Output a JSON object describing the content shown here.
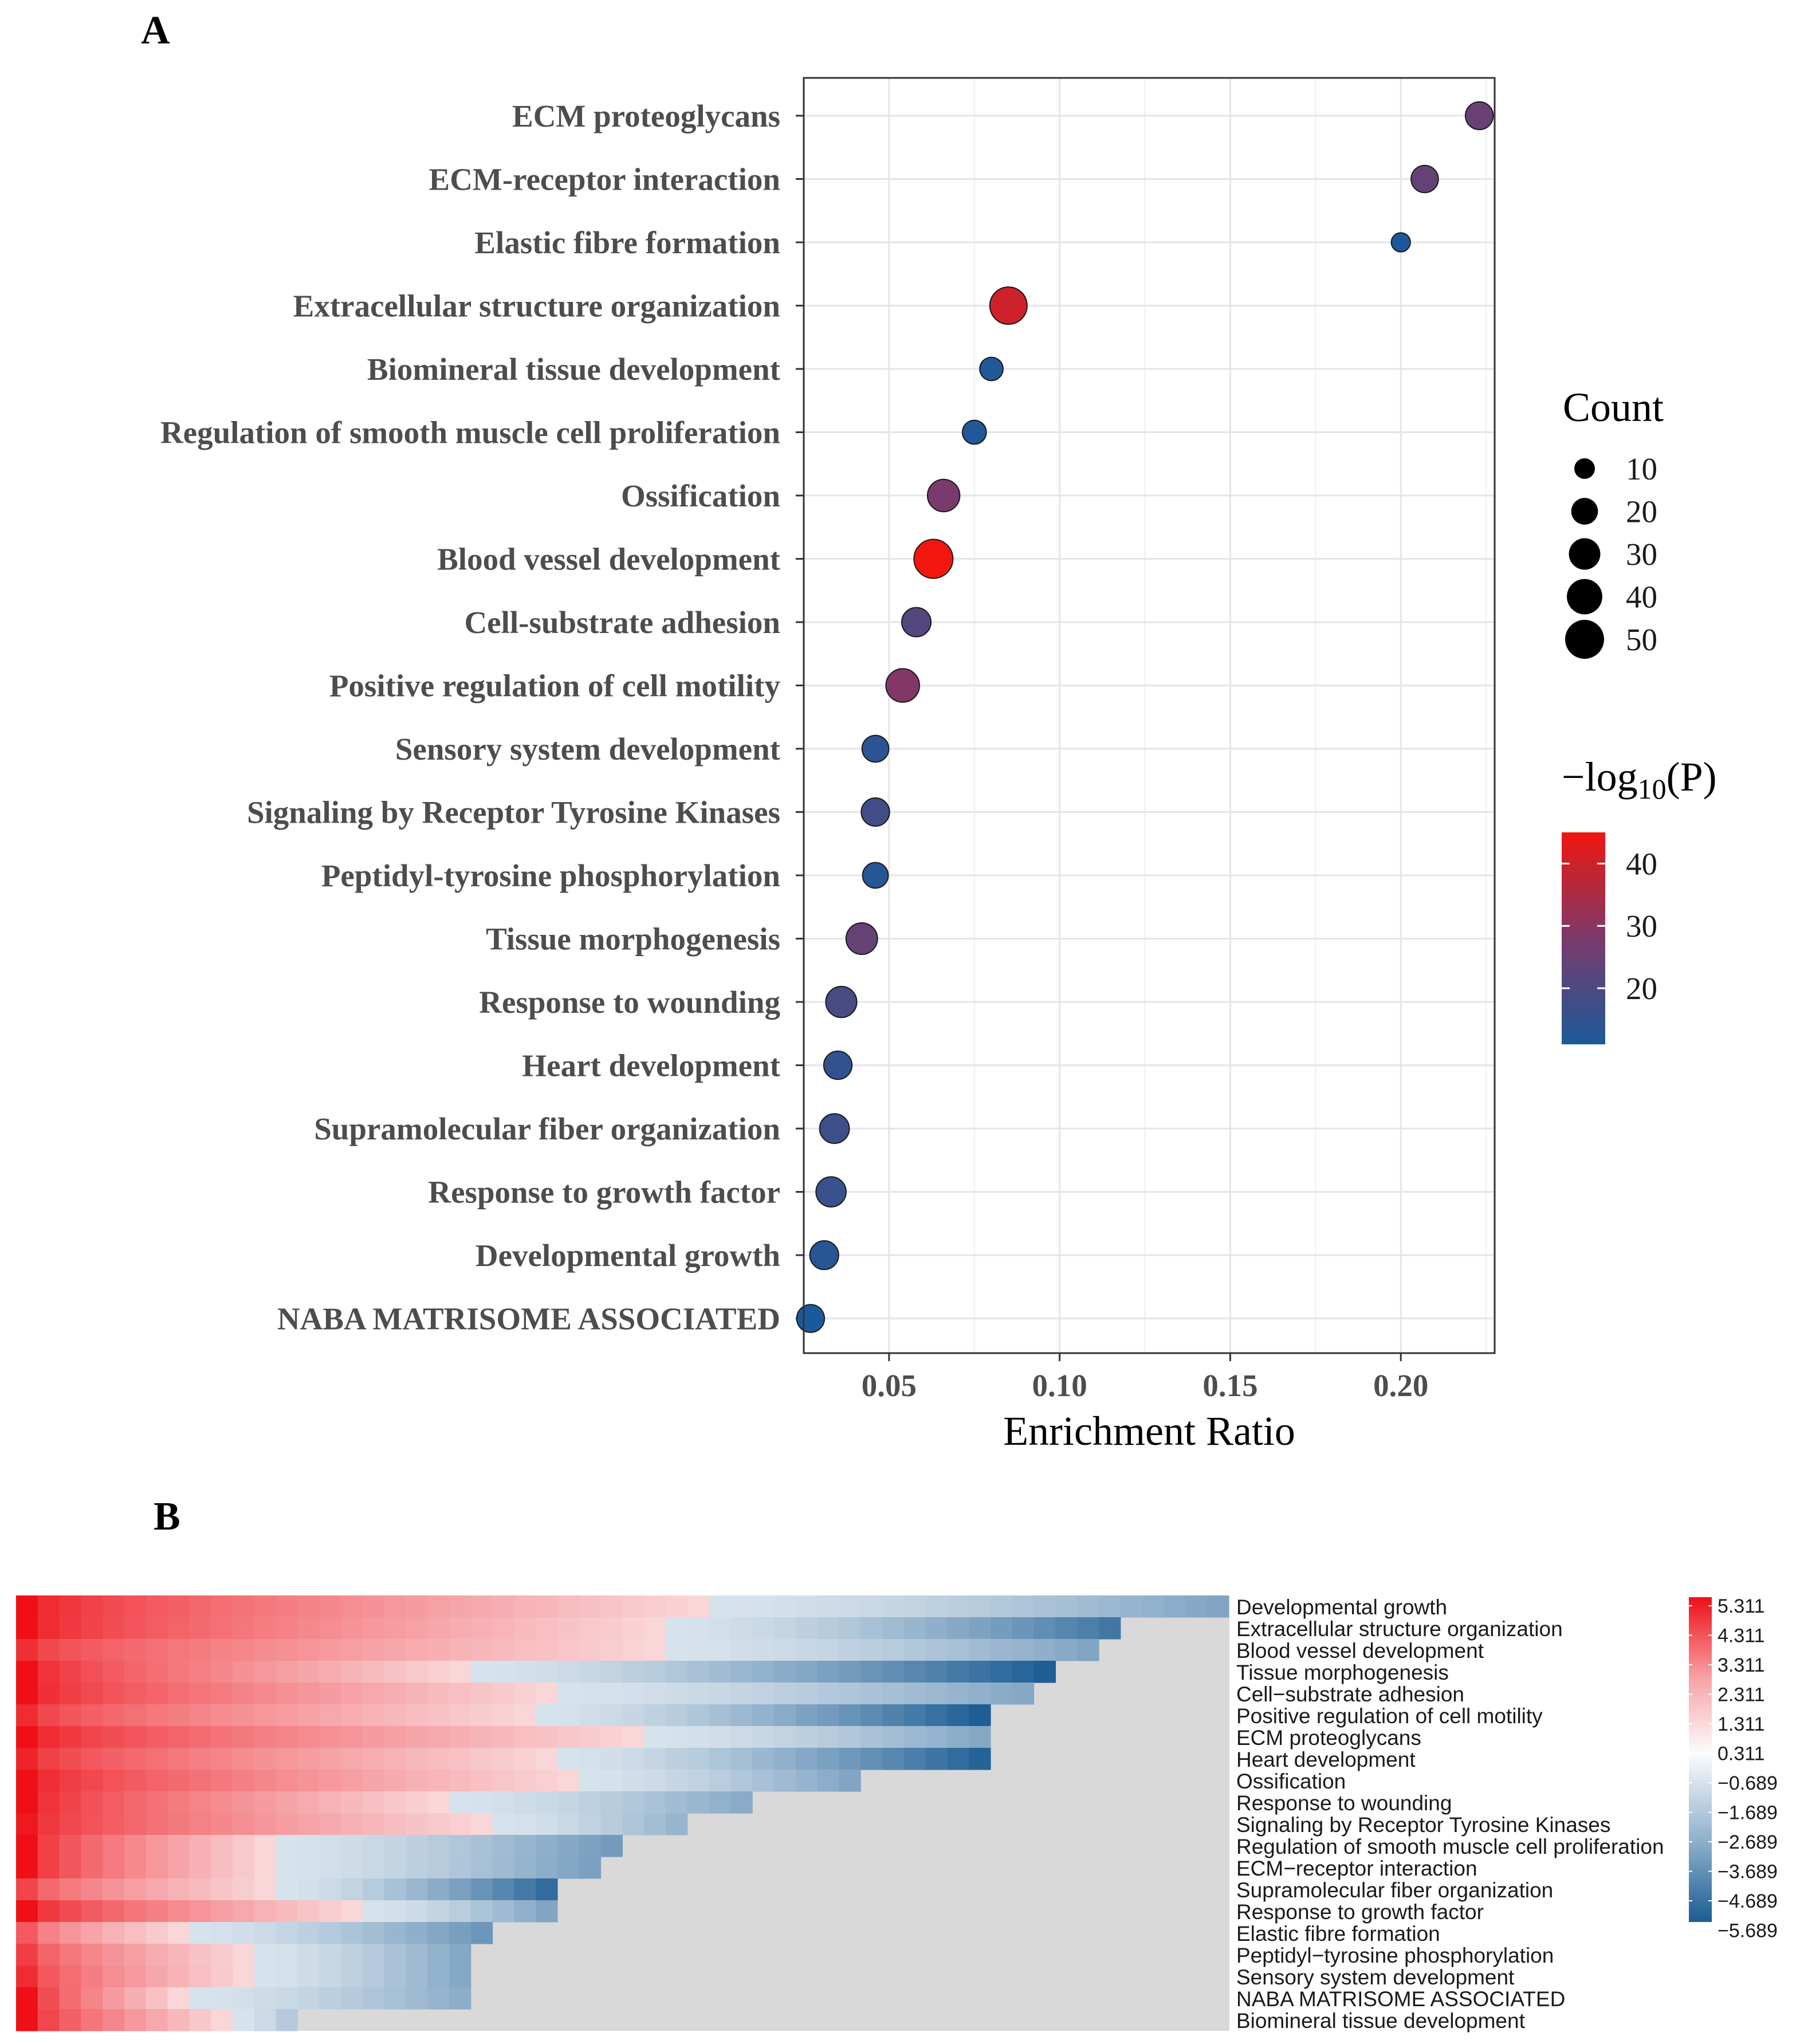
{
  "panels": {
    "a_label": "A",
    "b_label": "B"
  },
  "chart_data": [
    {
      "type": "scatter",
      "panel": "A",
      "xlabel": "Enrichment Ratio",
      "xlim": [
        0.025,
        0.2275
      ],
      "xticks": [
        0.05,
        0.1,
        0.15,
        0.2
      ],
      "xtick_labels": [
        "0.05",
        "0.10",
        "0.15",
        "0.20"
      ],
      "terms": [
        "ECM proteoglycans",
        "ECM-receptor interaction",
        "Elastic fibre formation",
        "Extracellular structure organization",
        "Biomineral tissue development",
        "Regulation of smooth muscle cell proliferation",
        "Ossification",
        "Blood vessel development",
        "Cell-substrate adhesion",
        "Positive regulation of cell motility",
        "Sensory system development",
        "Signaling by Receptor Tyrosine Kinases",
        "Peptidyl-tyrosine phosphorylation",
        "Tissue morphogenesis",
        "Response to wounding",
        "Heart development",
        "Supramolecular fiber organization",
        "Response to growth factor",
        "Developmental growth",
        "NABA MATRISOME ASSOCIATED"
      ],
      "enrichment_ratio": [
        0.223,
        0.207,
        0.2,
        0.085,
        0.08,
        0.075,
        0.066,
        0.063,
        0.058,
        0.054,
        0.046,
        0.046,
        0.046,
        0.042,
        0.036,
        0.035,
        0.034,
        0.033,
        0.031,
        0.027
      ],
      "count": [
        22,
        21,
        8,
        45,
        14,
        15,
        32,
        50,
        25,
        35,
        20,
        23,
        18,
        30,
        29,
        23,
        26,
        27,
        24,
        22
      ],
      "neglog10p": [
        25,
        24,
        10,
        40,
        12,
        12,
        28,
        45,
        21,
        29,
        14,
        18,
        13,
        24,
        19,
        15,
        17,
        16,
        13,
        10
      ],
      "legend_size": {
        "title": "Count",
        "values": [
          10,
          20,
          30,
          40,
          50
        ],
        "labels": [
          "10",
          "20",
          "30",
          "40",
          "50"
        ]
      },
      "legend_color": {
        "title_prefix": "−log",
        "title_sub": "10",
        "title_suffix": "(P)",
        "ticks": [
          20,
          30,
          40
        ],
        "tick_labels": [
          "20",
          "30",
          "40"
        ],
        "range": [
          11,
          45
        ],
        "low_color": "#1b5a9a",
        "high_color": "#f2160f"
      }
    },
    {
      "type": "heatmap",
      "panel": "B",
      "rows": [
        "Developmental growth",
        "Extracellular structure organization",
        "Blood vessel development",
        "Tissue morphogenesis",
        "Cell−substrate adhesion",
        "Positive regulation of cell motility",
        "ECM proteoglycans",
        "Heart development",
        "Ossification",
        "Response to wounding",
        "Signaling by Receptor Tyrosine Kinases",
        "Regulation of smooth muscle cell proliferation",
        "ECM−receptor interaction",
        "Supramolecular fiber organization",
        "Response to growth factor",
        "Elastic fibre formation",
        "Peptidyl−tyrosine phosphorylation",
        "Sensory system development",
        "NABA MATRISOME ASSOCIATED",
        "Biomineral tissue development"
      ],
      "row_lengths": [
        56,
        51,
        50,
        48,
        47,
        45,
        45,
        45,
        39,
        34,
        31,
        28,
        27,
        25,
        25,
        22,
        21,
        21,
        21,
        13
      ],
      "row_positive_lengths": [
        32,
        30,
        30,
        21,
        25,
        24,
        29,
        25,
        26,
        20,
        22,
        12,
        12,
        12,
        16,
        8,
        11,
        11,
        8,
        10
      ],
      "row_min": [
        -2.6,
        -4.5,
        -2.6,
        -5.6,
        -2.5,
        -5.6,
        -2.5,
        -5.4,
        -2.6,
        -2.4,
        -2.0,
        -3.0,
        -2.8,
        -5.0,
        -2.6,
        -3.2,
        -2.5,
        -2.5,
        -2.3,
        -1.2
      ],
      "row_max": [
        5.3,
        5.3,
        4.5,
        5.3,
        5.3,
        4.6,
        5.3,
        4.8,
        5.3,
        5.3,
        5.1,
        5.3,
        5.3,
        4.0,
        5.3,
        3.5,
        4.2,
        4.6,
        5.3,
        5.3
      ],
      "scale_ticks": [
        "5.311",
        "4.311",
        "3.311",
        "2.311",
        "1.311",
        "0.311",
        "−0.689",
        "−1.689",
        "−2.689",
        "−3.689",
        "−4.689",
        "−5.689"
      ],
      "scale_range": [
        -5.689,
        5.311
      ],
      "colors": {
        "high": "#ee0f17",
        "mid": "#fbfcfd",
        "low": "#1b5c93",
        "empty": "#d9d9d9"
      }
    }
  ]
}
